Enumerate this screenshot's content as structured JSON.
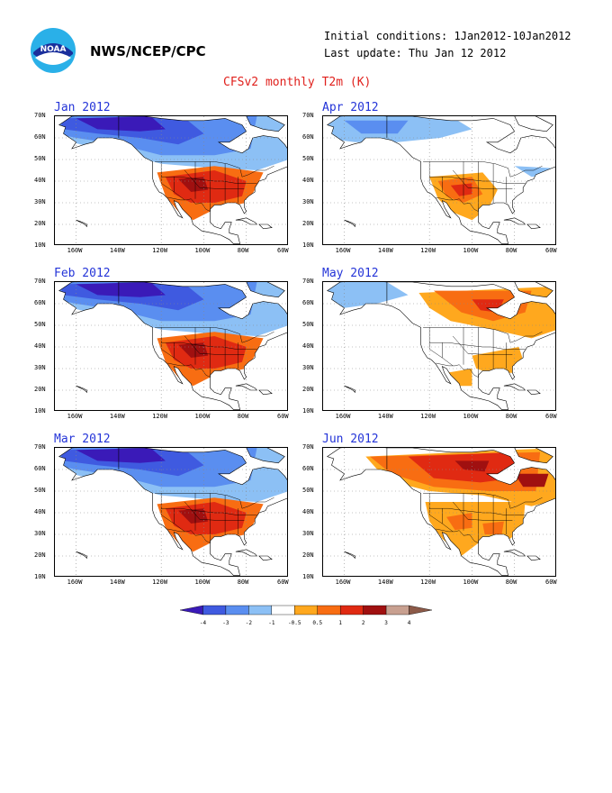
{
  "header": {
    "org_name": "NWS/NCEP/CPC",
    "logo_text": "NOAA",
    "initial_conditions": "Initial conditions: 1Jan2012-10Jan2012",
    "last_update": "Last update: Thu Jan 12 2012",
    "main_title": "CFSv2 monthly T2m (K)"
  },
  "panels": [
    {
      "title": "Jan 2012",
      "pattern": "cold_north_warm_south"
    },
    {
      "title": "Apr 2012",
      "pattern": "mild_cool_north_warm_west"
    },
    {
      "title": "Feb 2012",
      "pattern": "cold_north_warm_south"
    },
    {
      "title": "May 2012",
      "pattern": "warm_canada_warm_se"
    },
    {
      "title": "Mar 2012",
      "pattern": "cold_north_warm_south"
    },
    {
      "title": "Jun 2012",
      "pattern": "hot_canada_warm_us"
    }
  ],
  "axes": {
    "lat_labels": [
      "70N",
      "60N",
      "50N",
      "40N",
      "30N",
      "20N",
      "10N"
    ],
    "lon_labels": [
      "160W",
      "140W",
      "120W",
      "100W",
      "80W",
      "60W"
    ]
  },
  "colorbar": {
    "labels": [
      "-4",
      "-3",
      "-2",
      "-1",
      "-0.5",
      "0.5",
      "1",
      "2",
      "3",
      "4"
    ],
    "colors": [
      "#3a1ab8",
      "#3f5ae0",
      "#5a8ef0",
      "#8cc0f5",
      "#ffffff",
      "#ffa81e",
      "#f86d12",
      "#e02a12",
      "#a01010",
      "#c8a090",
      "#8c5a48"
    ]
  },
  "map_colors": {
    "land_outline": "#000000",
    "grid": "#888888"
  }
}
